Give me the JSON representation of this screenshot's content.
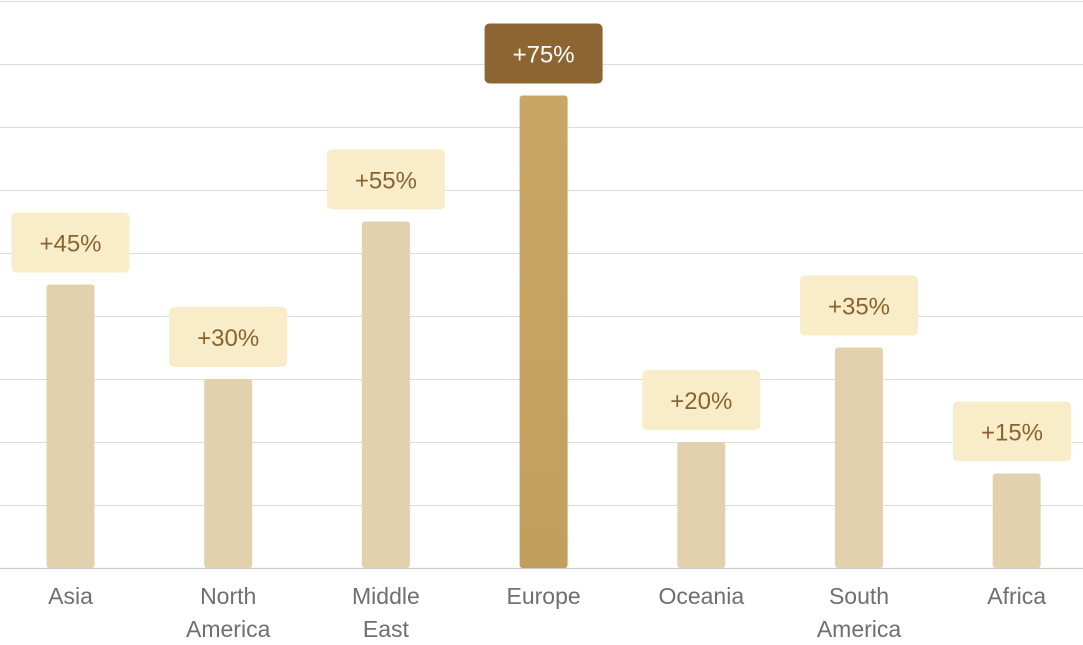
{
  "colors": {
    "bar": "#e3d1ae",
    "bar_highlight_top": "#c8a764",
    "bar_highlight_bottom": "#c29f5c",
    "label_bg": "#f9ecc8",
    "label_text": "#8a6430",
    "label_bg_highlight": "#8d6532",
    "label_text_highlight": "#ffffff"
  },
  "chart_data": {
    "type": "bar",
    "categories": [
      "Asia",
      "North America",
      "Middle East",
      "Europe",
      "Oceania",
      "South America",
      "Africa"
    ],
    "category_lines": [
      [
        "Asia"
      ],
      [
        "North",
        "America"
      ],
      [
        "Middle",
        "East"
      ],
      [
        "Europe"
      ],
      [
        "Oceania"
      ],
      [
        "South",
        "America"
      ],
      [
        "Africa"
      ]
    ],
    "values": [
      45,
      30,
      55,
      75,
      20,
      35,
      15
    ],
    "data_labels": [
      "+45%",
      "+30%",
      "+55%",
      "+75%",
      "+20%",
      "+35%",
      "+15%"
    ],
    "highlight": "Europe",
    "ylim": [
      0,
      90
    ],
    "grid": true,
    "title": "",
    "xlabel": "",
    "ylabel": ""
  }
}
